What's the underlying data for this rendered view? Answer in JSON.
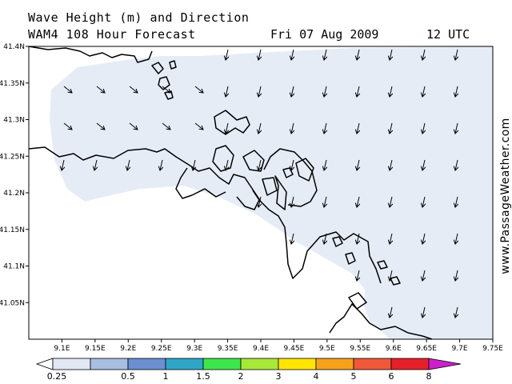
{
  "title": {
    "line1": "Wave Height (m) and Direction",
    "line2": "WAM4 108 Hour Forecast",
    "forecast_date": "Fri 07 Aug 2009",
    "forecast_time": "12 UTC"
  },
  "credit": "www.PassageWeather.com",
  "map": {
    "sea_color": "#e6ecf6",
    "land_color": "#ffffff",
    "coast_color": "#000000",
    "lat_range": [
      41.0,
      41.4
    ],
    "lon_range": [
      9.05,
      9.75
    ],
    "lat_ticks": [
      {
        "value": 41.4,
        "label": "41.4N"
      },
      {
        "value": 41.35,
        "label": "41.35N"
      },
      {
        "value": 41.3,
        "label": "41.3N"
      },
      {
        "value": 41.25,
        "label": "41.25N"
      },
      {
        "value": 41.2,
        "label": "41.2N"
      },
      {
        "value": 41.15,
        "label": "41.15N"
      },
      {
        "value": 41.1,
        "label": "41.1N"
      },
      {
        "value": 41.05,
        "label": "41.05N"
      }
    ],
    "lon_ticks": [
      {
        "value": 9.1,
        "label": "9.1E"
      },
      {
        "value": 9.15,
        "label": "9.15E"
      },
      {
        "value": 9.2,
        "label": "9.2E"
      },
      {
        "value": 9.25,
        "label": "9.25E"
      },
      {
        "value": 9.3,
        "label": "9.3E"
      },
      {
        "value": 9.35,
        "label": "9.35E"
      },
      {
        "value": 9.4,
        "label": "9.4E"
      },
      {
        "value": 9.45,
        "label": "9.45E"
      },
      {
        "value": 9.5,
        "label": "9.5E"
      },
      {
        "value": 9.55,
        "label": "9.55E"
      },
      {
        "value": 9.6,
        "label": "9.6E"
      },
      {
        "value": 9.65,
        "label": "9.65E"
      },
      {
        "value": 9.7,
        "label": "9.7E"
      },
      {
        "value": 9.75,
        "label": "9.75E"
      }
    ],
    "wave_direction_arrows": "mostly southward, slightly south-southwest; south-southeast along the western shore"
  },
  "legend": {
    "labels": [
      "0.25",
      "0.5",
      "1",
      "1.5",
      "2",
      "3",
      "4",
      "5",
      "6",
      "8"
    ],
    "colors": [
      "#ffffff",
      "#e1e8f4",
      "#a8bfe2",
      "#6b8fd1",
      "#2fa6c8",
      "#3ee64e",
      "#a8e838",
      "#ffe600",
      "#f5a21a",
      "#f0583a",
      "#e5202a",
      "#b80012",
      "#cc20cc"
    ]
  }
}
